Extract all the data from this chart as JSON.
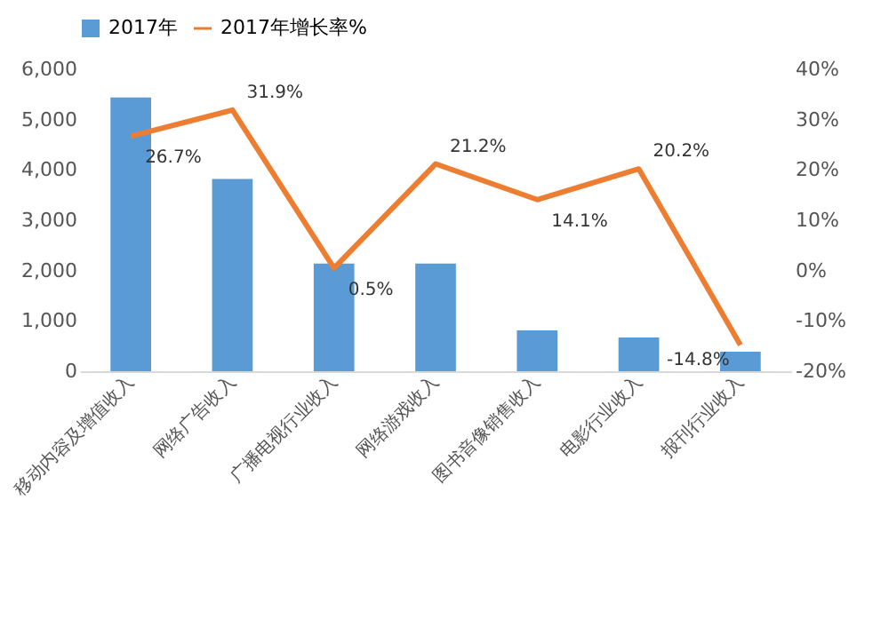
{
  "chart_data": {
    "type": "bar",
    "categories": [
      "移动内容及增值收入",
      "网络广告收入",
      "广播电视行业收入",
      "网络游戏收入",
      "图书音像销售收入",
      "电影行业收入",
      "报刊行业收入"
    ],
    "series": [
      {
        "name": "2017年",
        "color": "#5b9bd5",
        "values": [
          5440,
          3820,
          2140,
          2140,
          810,
          670,
          390
        ]
      },
      {
        "name": "2017年增长率%",
        "type": "line",
        "axis": "y2",
        "color": "#ed7d31",
        "values": [
          26.7,
          31.9,
          0.5,
          21.2,
          14.1,
          20.2,
          -14.8
        ],
        "value_labels": [
          "26.7%",
          "31.9%",
          "0.5%",
          "21.2%",
          "14.1%",
          "20.2%",
          "-14.8%"
        ]
      }
    ],
    "ylim": [
      0,
      6000
    ],
    "yticks": [
      {
        "value": 0,
        "label": "0"
      },
      {
        "value": 1000,
        "label": "1,000"
      },
      {
        "value": 2000,
        "label": "2,000"
      },
      {
        "value": 3000,
        "label": "3,000"
      },
      {
        "value": 4000,
        "label": "4,000"
      },
      {
        "value": 5000,
        "label": "5,000"
      },
      {
        "value": 6000,
        "label": "6,000"
      }
    ],
    "y2lim": [
      -20,
      40
    ],
    "y2ticks": [
      {
        "value": -20,
        "label": "-20%"
      },
      {
        "value": -10,
        "label": "-10%"
      },
      {
        "value": 0,
        "label": "0%"
      },
      {
        "value": 10,
        "label": "10%"
      },
      {
        "value": 20,
        "label": "20%"
      },
      {
        "value": 30,
        "label": "30%"
      },
      {
        "value": 40,
        "label": "40%"
      }
    ],
    "legend": "top",
    "grid": false,
    "marker": "none",
    "line_style": "solid"
  }
}
